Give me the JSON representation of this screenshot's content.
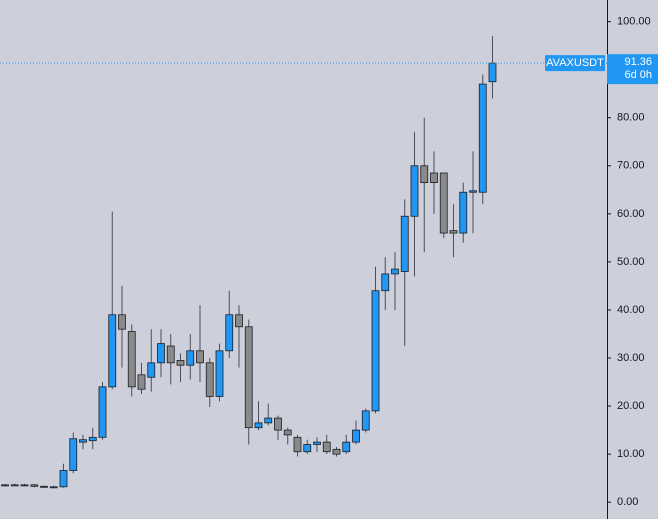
{
  "chart_data": {
    "type": "candlestick",
    "series": [
      {
        "name": "AVAXUSDT",
        "up_color": "#2196f3",
        "down_color": "#8a8a8a",
        "open": [
          3.5,
          3.6,
          3.5,
          3.6,
          3.3,
          3.1,
          3.2,
          6.6,
          12.5,
          12.8,
          13.5,
          24,
          39,
          35.5,
          26.5,
          26,
          29,
          32.5,
          29.5,
          28.5,
          31.5,
          29,
          22,
          31.5,
          39,
          36.5,
          15.5,
          16.5,
          17.5,
          15,
          13.5,
          10.5,
          12,
          12.5,
          11,
          10.5,
          12.5,
          15,
          19,
          44,
          47.5,
          48,
          59.5,
          70,
          68.5,
          68.5,
          56.5,
          56,
          64.5,
          64.5,
          87.5
        ],
        "high": [
          3.8,
          3.9,
          3.8,
          3.8,
          3.5,
          3.4,
          8,
          14.5,
          14,
          15.5,
          25,
          60.5,
          45,
          37,
          29,
          36,
          36,
          35,
          31,
          35,
          41,
          30,
          33,
          44,
          41,
          38,
          21,
          20.5,
          18,
          15.5,
          14,
          13,
          13.5,
          14,
          11.5,
          14,
          17,
          19.5,
          49,
          51,
          52,
          63,
          77,
          80,
          73,
          68.5,
          62,
          66.5,
          73,
          89,
          97
        ],
        "low": [
          3.3,
          3.4,
          3.3,
          3.1,
          3.0,
          2.9,
          3.0,
          6,
          11,
          11,
          13,
          23.5,
          28,
          22,
          22.5,
          23,
          26,
          24.5,
          25,
          25.5,
          25,
          19.8,
          21,
          30,
          28,
          12,
          15,
          16,
          13,
          12,
          9.5,
          10,
          10.5,
          10,
          9.5,
          10,
          12,
          14.5,
          18.5,
          40,
          40,
          32.5,
          47,
          52,
          60,
          55,
          51,
          54,
          56,
          62,
          84
        ],
        "close": [
          3.6,
          3.5,
          3.6,
          3.3,
          3.1,
          3.2,
          6.6,
          13.2,
          13,
          13.5,
          24,
          39,
          36,
          24,
          23.5,
          29,
          33,
          29,
          28.5,
          31.5,
          29,
          22,
          31.5,
          39,
          36.5,
          15.5,
          16.5,
          17.5,
          15,
          14,
          10.5,
          12,
          12.5,
          10.5,
          10,
          12.5,
          15,
          19,
          44,
          47.5,
          48.5,
          59.5,
          70,
          66.5,
          66.5,
          56,
          56,
          64.5,
          64.8,
          87,
          91.36
        ]
      }
    ],
    "last_price": 91.36,
    "countdown": "6d 0h",
    "ylim": [
      -3.5,
      104.5
    ],
    "yticks": [
      {
        "value": 0,
        "label": "0.00"
      },
      {
        "value": 10,
        "label": "10.00"
      },
      {
        "value": 20,
        "label": "20.00"
      },
      {
        "value": 30,
        "label": "30.00"
      },
      {
        "value": 40,
        "label": "40.00"
      },
      {
        "value": 50,
        "label": "50.00"
      },
      {
        "value": 60,
        "label": "60.00"
      },
      {
        "value": 70,
        "label": "70.00"
      },
      {
        "value": 80,
        "label": "80.00"
      },
      {
        "value": 100,
        "label": "100.00"
      }
    ]
  }
}
